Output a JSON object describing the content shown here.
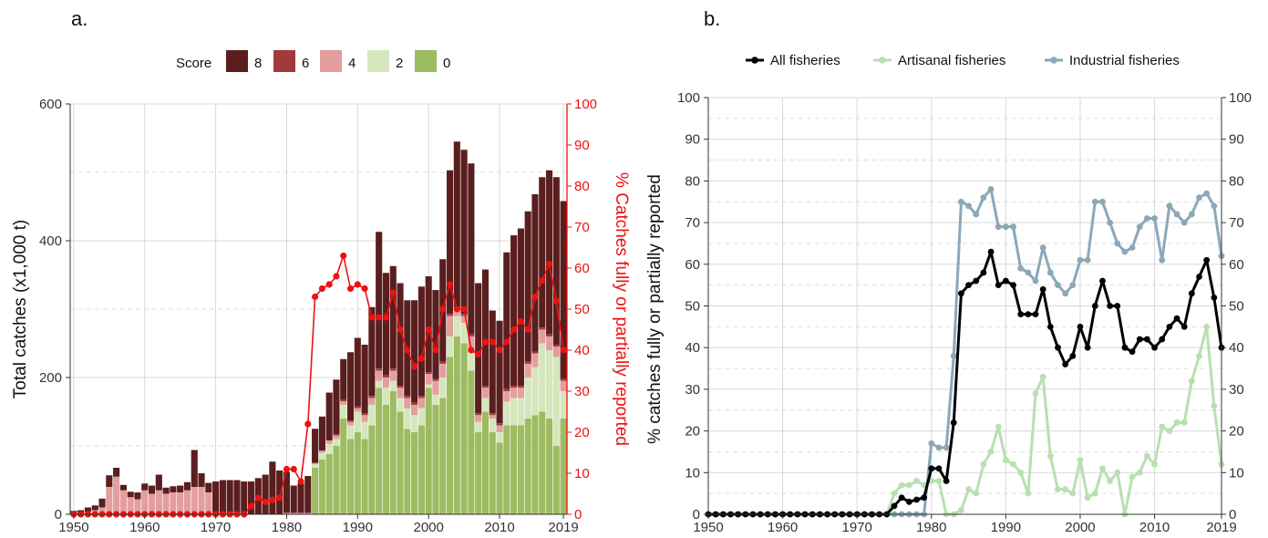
{
  "chart_data": [
    {
      "panel_label": "a.",
      "type": "bar",
      "stacked": true,
      "x": [
        1950,
        1951,
        1952,
        1953,
        1954,
        1955,
        1956,
        1957,
        1958,
        1959,
        1960,
        1961,
        1962,
        1963,
        1964,
        1965,
        1966,
        1967,
        1968,
        1969,
        1970,
        1971,
        1972,
        1973,
        1974,
        1975,
        1976,
        1977,
        1978,
        1979,
        1980,
        1981,
        1982,
        1983,
        1984,
        1985,
        1986,
        1987,
        1988,
        1989,
        1990,
        1991,
        1992,
        1993,
        1994,
        1995,
        1996,
        1997,
        1998,
        1999,
        2000,
        2001,
        2002,
        2003,
        2004,
        2005,
        2006,
        2007,
        2008,
        2009,
        2010,
        2011,
        2012,
        2013,
        2014,
        2015,
        2016,
        2017,
        2018,
        2019
      ],
      "legend_title": "Score",
      "series": [
        {
          "name": "0",
          "color": "#9dbb61",
          "values": [
            0,
            0,
            0,
            0,
            0,
            0,
            0,
            0,
            0,
            0,
            0,
            0,
            0,
            0,
            0,
            0,
            0,
            0,
            0,
            0,
            0,
            0,
            0,
            0,
            0,
            0,
            0,
            0,
            0,
            0,
            0,
            0,
            0,
            0,
            68,
            80,
            88,
            100,
            140,
            110,
            120,
            110,
            130,
            185,
            160,
            180,
            150,
            125,
            120,
            130,
            185,
            160,
            170,
            230,
            260,
            250,
            210,
            120,
            150,
            120,
            105,
            130,
            130,
            130,
            140,
            145,
            150,
            140,
            100,
            140
          ]
        },
        {
          "name": "2",
          "color": "#d6e6bc",
          "values": [
            0,
            0,
            0,
            0,
            0,
            0,
            0,
            0,
            0,
            0,
            0,
            0,
            0,
            0,
            0,
            0,
            0,
            0,
            0,
            0,
            0,
            0,
            0,
            0,
            0,
            0,
            0,
            0,
            0,
            0,
            0,
            0,
            0,
            0,
            5,
            10,
            15,
            10,
            20,
            20,
            30,
            25,
            30,
            10,
            25,
            15,
            20,
            30,
            25,
            25,
            5,
            15,
            30,
            30,
            30,
            30,
            30,
            15,
            20,
            20,
            15,
            35,
            40,
            40,
            60,
            70,
            100,
            100,
            130,
            40
          ]
        },
        {
          "name": "4",
          "color": "#e49e9e",
          "values": [
            2,
            2,
            4,
            6,
            10,
            40,
            55,
            35,
            25,
            22,
            35,
            30,
            35,
            30,
            32,
            32,
            35,
            40,
            40,
            32,
            0,
            0,
            0,
            0,
            0,
            0,
            0,
            0,
            0,
            0,
            2,
            2,
            2,
            2,
            2,
            3,
            5,
            5,
            5,
            5,
            5,
            10,
            10,
            15,
            15,
            15,
            15,
            15,
            15,
            15,
            15,
            20,
            20,
            30,
            10,
            10,
            20,
            10,
            15,
            5,
            10,
            15,
            15,
            15,
            20,
            20,
            20,
            20,
            15,
            15
          ]
        },
        {
          "name": "6",
          "color": "#a33a3a",
          "values": [
            0,
            0,
            0,
            0,
            0,
            0,
            0,
            0,
            0,
            0,
            0,
            0,
            0,
            0,
            0,
            0,
            0,
            0,
            0,
            0,
            0,
            0,
            0,
            0,
            0,
            0,
            0,
            0,
            0,
            0,
            0,
            0,
            0,
            0,
            0,
            0,
            0,
            2,
            2,
            2,
            3,
            3,
            3,
            3,
            3,
            3,
            3,
            3,
            3,
            3,
            3,
            3,
            3,
            3,
            3,
            3,
            3,
            3,
            3,
            3,
            3,
            3,
            3,
            3,
            3,
            3,
            3,
            3,
            3,
            3
          ]
        },
        {
          "name": "8",
          "color": "#5a1e1e",
          "values": [
            3,
            4,
            6,
            7,
            13,
            17,
            13,
            8,
            8,
            10,
            10,
            12,
            23,
            9,
            9,
            10,
            12,
            54,
            20,
            14,
            48,
            50,
            50,
            50,
            48,
            48,
            53,
            58,
            77,
            64,
            60,
            40,
            43,
            54,
            50,
            50,
            70,
            80,
            60,
            100,
            100,
            100,
            130,
            200,
            150,
            150,
            150,
            140,
            150,
            160,
            140,
            130,
            150,
            210,
            242,
            240,
            250,
            190,
            170,
            150,
            150,
            200,
            220,
            230,
            220,
            230,
            220,
            240,
            245,
            260
          ]
        }
      ],
      "ylabel": "Total catches (x1,000 t)",
      "ylim": [
        0,
        600
      ],
      "yticks": [
        0,
        200,
        400,
        600
      ],
      "xticks": [
        1950,
        1960,
        1970,
        1980,
        1990,
        2000,
        2010,
        2019
      ],
      "grid": true,
      "legend_position": "top",
      "secondary": {
        "type": "line",
        "color": "#ee1111",
        "ylabel": "% Catches fully or partially reported",
        "ylim": [
          0,
          100
        ],
        "yticks": [
          0,
          10,
          20,
          30,
          40,
          50,
          60,
          70,
          80,
          90,
          100
        ],
        "values": [
          0,
          0,
          0,
          0,
          0,
          0,
          0,
          0,
          0,
          0,
          0,
          0,
          0,
          0,
          0,
          0,
          0,
          0,
          0,
          0,
          0,
          0,
          0,
          0,
          0,
          2,
          4,
          3,
          3.5,
          4,
          11,
          11,
          8,
          22,
          53,
          55,
          56,
          58,
          63,
          55,
          56,
          55,
          48,
          48,
          48,
          54,
          45,
          40,
          36,
          38,
          45,
          40,
          50,
          56,
          50,
          50,
          40,
          39,
          42,
          42,
          40,
          42,
          45,
          47,
          45,
          53,
          57,
          61,
          52,
          40
        ]
      }
    },
    {
      "panel_label": "b.",
      "type": "line",
      "x": [
        1950,
        1951,
        1952,
        1953,
        1954,
        1955,
        1956,
        1957,
        1958,
        1959,
        1960,
        1961,
        1962,
        1963,
        1964,
        1965,
        1966,
        1967,
        1968,
        1969,
        1970,
        1971,
        1972,
        1973,
        1974,
        1975,
        1976,
        1977,
        1978,
        1979,
        1980,
        1981,
        1982,
        1983,
        1984,
        1985,
        1986,
        1987,
        1988,
        1989,
        1990,
        1991,
        1992,
        1993,
        1994,
        1995,
        1996,
        1997,
        1998,
        1999,
        2000,
        2001,
        2002,
        2003,
        2004,
        2005,
        2006,
        2007,
        2008,
        2009,
        2010,
        2011,
        2012,
        2013,
        2014,
        2015,
        2016,
        2017,
        2018,
        2019
      ],
      "series": [
        {
          "name": "All fisheries",
          "color": "#000000",
          "values": [
            0,
            0,
            0,
            0,
            0,
            0,
            0,
            0,
            0,
            0,
            0,
            0,
            0,
            0,
            0,
            0,
            0,
            0,
            0,
            0,
            0,
            0,
            0,
            0,
            0,
            2,
            4,
            3,
            3.5,
            4,
            11,
            11,
            8,
            22,
            53,
            55,
            56,
            58,
            63,
            55,
            56,
            55,
            48,
            48,
            48,
            54,
            45,
            40,
            36,
            38,
            45,
            40,
            50,
            56,
            50,
            50,
            40,
            39,
            42,
            42,
            40,
            42,
            45,
            47,
            45,
            53,
            57,
            61,
            52,
            40
          ]
        },
        {
          "name": "Artisanal fisheries",
          "color": "#b8e0b0",
          "values": [
            0,
            0,
            0,
            0,
            0,
            0,
            0,
            0,
            0,
            0,
            0,
            0,
            0,
            0,
            0,
            0,
            0,
            0,
            0,
            0,
            0,
            0,
            0,
            0,
            0,
            5,
            7,
            7,
            8,
            7,
            8,
            8,
            0,
            0,
            1,
            6,
            5,
            12,
            15,
            21,
            13,
            12,
            10,
            5,
            29,
            33,
            14,
            6,
            6,
            5,
            13,
            4,
            5,
            11,
            8,
            10,
            0,
            9,
            10,
            14,
            12,
            21,
            20,
            22,
            22,
            32,
            38,
            45,
            26,
            12
          ]
        },
        {
          "name": "Industrial fisheries",
          "color": "#8aa8b8",
          "values": [
            0,
            0,
            0,
            0,
            0,
            0,
            0,
            0,
            0,
            0,
            0,
            0,
            0,
            0,
            0,
            0,
            0,
            0,
            0,
            0,
            0,
            0,
            0,
            0,
            0,
            0,
            0,
            0,
            0,
            0,
            17,
            16,
            16,
            38,
            75,
            74,
            72,
            76,
            78,
            69,
            69,
            69,
            59,
            58,
            56,
            64,
            58,
            55,
            53,
            55,
            61,
            61,
            75,
            75,
            70,
            65,
            63,
            64,
            69,
            71,
            71,
            61,
            74,
            72,
            70,
            72,
            76,
            77,
            74,
            62
          ]
        }
      ],
      "ylabel": "% catches fully or partially reported",
      "ylim": [
        0,
        100
      ],
      "yticks": [
        0,
        10,
        20,
        30,
        40,
        50,
        60,
        70,
        80,
        90,
        100
      ],
      "xticks": [
        1950,
        1960,
        1970,
        1980,
        1990,
        2000,
        2010,
        2019
      ],
      "grid": true,
      "legend_position": "top"
    }
  ]
}
